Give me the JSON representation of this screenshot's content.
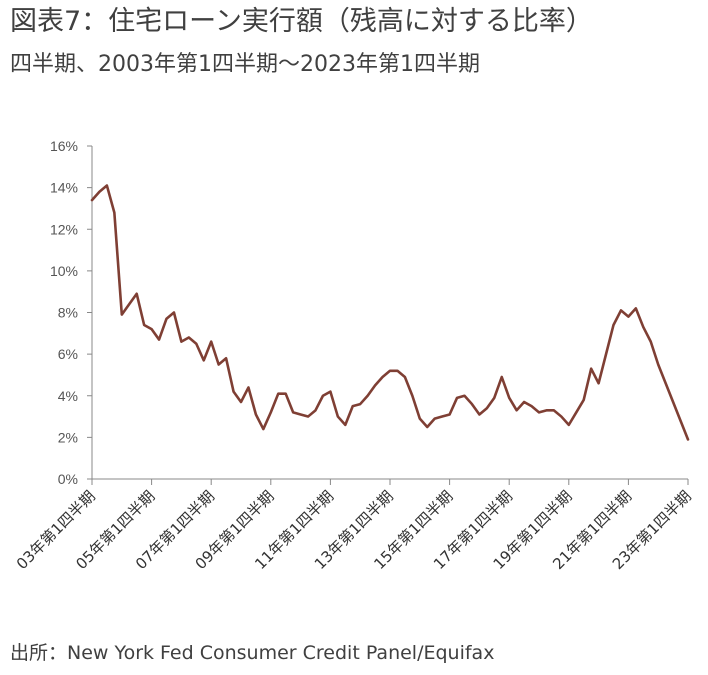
{
  "header": {
    "title": "図表7：住宅ローン実行額（残高に対する比率）",
    "subtitle": "四半期、2003年第1四半期～2023年第1四半期"
  },
  "footer": {
    "source": "出所：New York Fed Consumer Credit Panel/Equifax"
  },
  "chart_data": {
    "type": "line",
    "title": "",
    "xlabel": "",
    "ylabel": "",
    "ylim": [
      0,
      16
    ],
    "y_ticks": [
      "0%",
      "2%",
      "4%",
      "6%",
      "8%",
      "10%",
      "12%",
      "14%",
      "16%"
    ],
    "x_ticks": [
      {
        "index": 0,
        "label": "03年第1四半期"
      },
      {
        "index": 8,
        "label": "05年第1四半期"
      },
      {
        "index": 16,
        "label": "07年第1四半期"
      },
      {
        "index": 24,
        "label": "09年第1四半期"
      },
      {
        "index": 32,
        "label": "11年第1四半期"
      },
      {
        "index": 40,
        "label": "13年第1四半期"
      },
      {
        "index": 48,
        "label": "15年第1四半期"
      },
      {
        "index": 56,
        "label": "17年第1四半期"
      },
      {
        "index": 64,
        "label": "19年第1四半期"
      },
      {
        "index": 72,
        "label": "21年第1四半期"
      },
      {
        "index": 80,
        "label": "23年第1四半期"
      }
    ],
    "grid": false,
    "legend": "none",
    "line_color": "#7f3f34",
    "series": [
      {
        "values": [
          13.4,
          13.8,
          14.1,
          12.8,
          7.9,
          8.4,
          8.9,
          7.4,
          7.2,
          6.7,
          7.7,
          8.0,
          6.6,
          6.8,
          6.5,
          5.7,
          6.6,
          5.5,
          5.8,
          4.2,
          3.7,
          4.4,
          3.1,
          2.4,
          3.2,
          4.1,
          4.1,
          3.2,
          3.1,
          3.0,
          3.3,
          4.0,
          4.2,
          3.0,
          2.6,
          3.5,
          3.6,
          4.0,
          4.5,
          4.9,
          5.2,
          5.2,
          4.9,
          4.0,
          2.9,
          2.5,
          2.9,
          3.0,
          3.1,
          3.9,
          4.0,
          3.6,
          3.1,
          3.4,
          3.9,
          4.9,
          3.9,
          3.3,
          3.7,
          3.5,
          3.2,
          3.3,
          3.3,
          3.0,
          2.6,
          3.2,
          3.8,
          5.3,
          4.6,
          6.0,
          7.4,
          8.1,
          7.8,
          8.2,
          7.3,
          6.6,
          5.5,
          4.6,
          3.7,
          2.8,
          1.9
        ]
      }
    ]
  }
}
